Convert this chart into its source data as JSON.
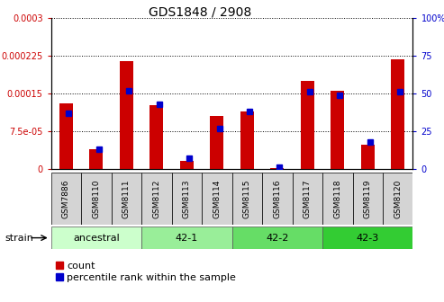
{
  "title": "GDS1848 / 2908",
  "samples": [
    "GSM7886",
    "GSM8110",
    "GSM8111",
    "GSM8112",
    "GSM8113",
    "GSM8114",
    "GSM8115",
    "GSM8116",
    "GSM8117",
    "GSM8118",
    "GSM8119",
    "GSM8120"
  ],
  "counts": [
    0.00013,
    4e-05,
    0.000215,
    0.000127,
    1.7e-05,
    0.000105,
    0.000115,
    2e-06,
    0.000175,
    0.000155,
    4.8e-05,
    0.000218
  ],
  "percentiles": [
    37,
    13,
    52,
    43,
    7,
    27,
    38,
    1,
    51,
    49,
    18,
    51
  ],
  "ylim_left": [
    0,
    0.0003
  ],
  "ylim_right": [
    0,
    100
  ],
  "yticks_left": [
    0,
    7.5e-05,
    0.00015,
    0.000225,
    0.0003
  ],
  "ytick_labels_left": [
    "0",
    "7.5e-05",
    "0.00015",
    "0.000225",
    "0.0003"
  ],
  "yticks_right": [
    0,
    25,
    50,
    75,
    100
  ],
  "ytick_labels_right": [
    "0",
    "25",
    "50",
    "75",
    "100%"
  ],
  "strain_groups": [
    {
      "label": "ancestral",
      "start": 0,
      "end": 3,
      "color": "#ccffcc"
    },
    {
      "label": "42-1",
      "start": 3,
      "end": 6,
      "color": "#99ee99"
    },
    {
      "label": "42-2",
      "start": 6,
      "end": 9,
      "color": "#66dd66"
    },
    {
      "label": "42-3",
      "start": 9,
      "end": 12,
      "color": "#33cc33"
    }
  ],
  "bar_color_count": "#cc0000",
  "bar_color_pct": "#0000cc",
  "bg_color": "#e8e8e8",
  "legend_labels": [
    "count",
    "percentile rank within the sample"
  ]
}
